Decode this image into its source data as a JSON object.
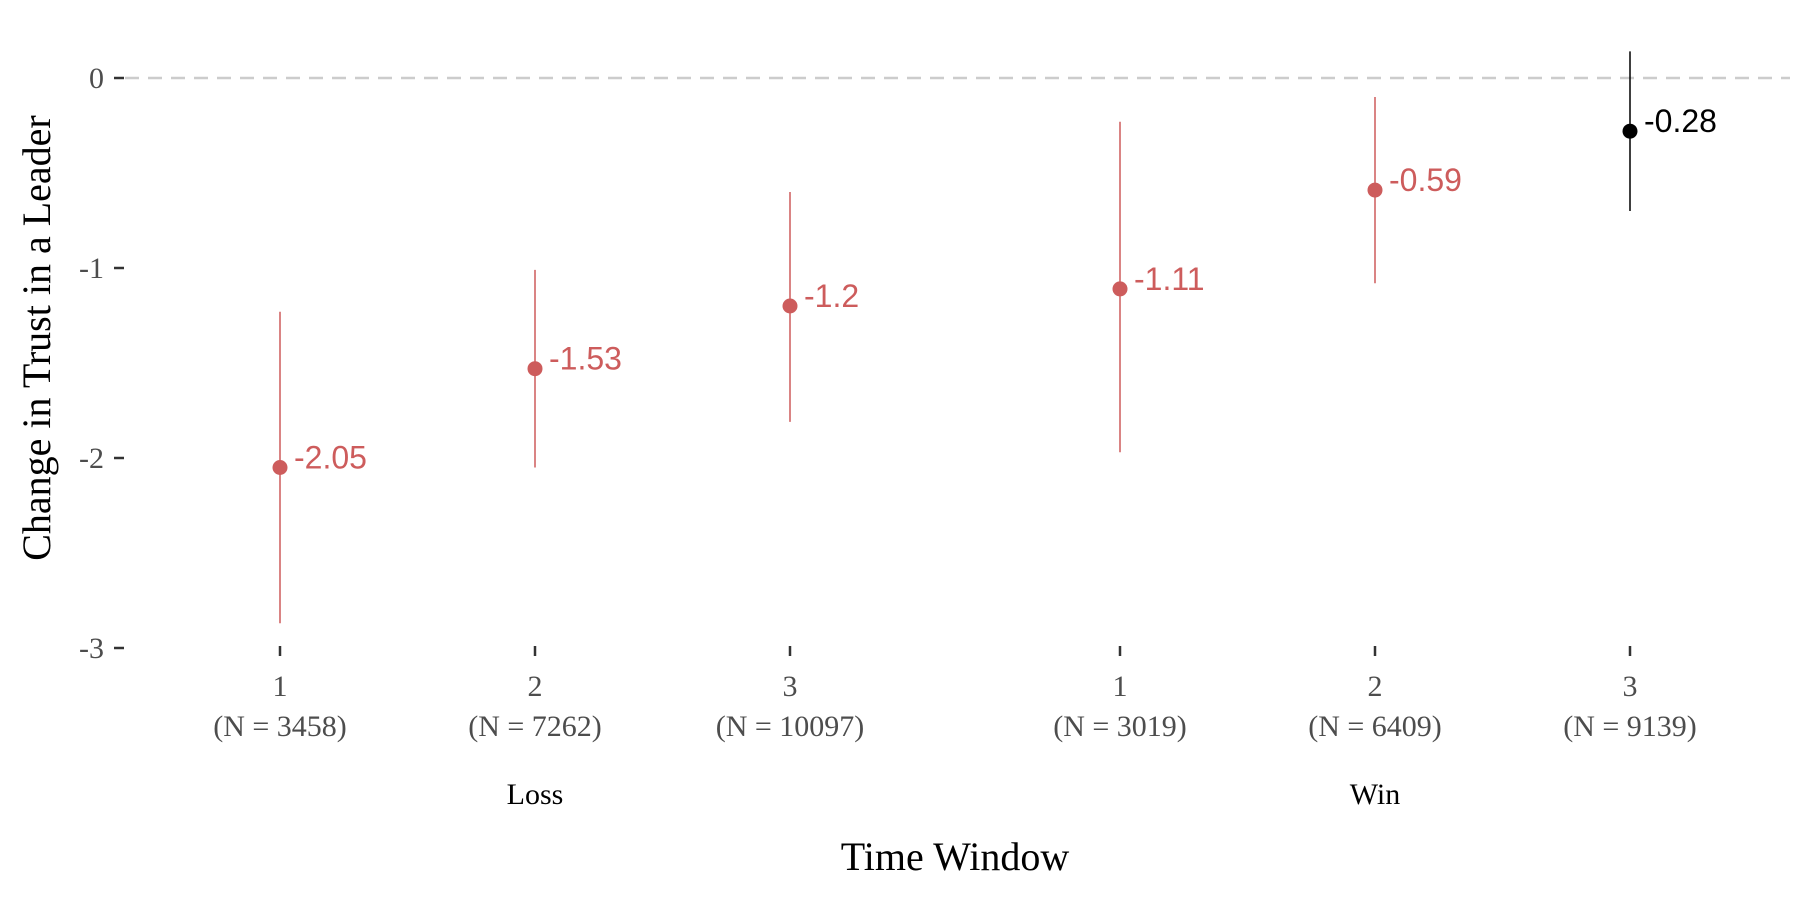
{
  "chart_data": {
    "type": "scatter",
    "subtype": "point-range",
    "xlabel": "Time Window",
    "ylabel": "Change in Trust in a Leader",
    "ylim": [
      -3,
      0.15
    ],
    "yticks": [
      "0",
      "-1",
      "-2",
      "-3"
    ],
    "ytick_values": [
      0,
      -1,
      -2,
      -3
    ],
    "reference_line": {
      "y": 0,
      "style": "dashed",
      "color": "#cccccc"
    },
    "grid": false,
    "groups": [
      {
        "label": "Loss",
        "categories": [
          "1",
          "2",
          "3"
        ]
      },
      {
        "label": "Win",
        "categories": [
          "1",
          "2",
          "3"
        ]
      }
    ],
    "points": [
      {
        "group": "Loss",
        "window": "1",
        "n_label": "(N = 3458)",
        "estimate": -2.05,
        "label": "-2.05",
        "lower": -2.87,
        "upper": -1.23,
        "color": "#cd5c5c"
      },
      {
        "group": "Loss",
        "window": "2",
        "n_label": "(N = 7262)",
        "estimate": -1.53,
        "label": "-1.53",
        "lower": -2.05,
        "upper": -1.01,
        "color": "#cd5c5c"
      },
      {
        "group": "Loss",
        "window": "3",
        "n_label": "(N = 10097)",
        "estimate": -1.2,
        "label": "-1.2",
        "lower": -1.81,
        "upper": -0.6,
        "color": "#cd5c5c"
      },
      {
        "group": "Win",
        "window": "1",
        "n_label": "(N = 3019)",
        "estimate": -1.11,
        "label": "-1.11",
        "lower": -1.97,
        "upper": -0.23,
        "color": "#cd5c5c"
      },
      {
        "group": "Win",
        "window": "2",
        "n_label": "(N = 6409)",
        "estimate": -0.59,
        "label": "-0.59",
        "lower": -1.08,
        "upper": -0.1,
        "color": "#cd5c5c"
      },
      {
        "group": "Win",
        "window": "3",
        "n_label": "(N = 9139)",
        "estimate": -0.28,
        "label": "-0.28",
        "lower": -0.7,
        "upper": 0.14,
        "color": "#000000"
      }
    ]
  }
}
